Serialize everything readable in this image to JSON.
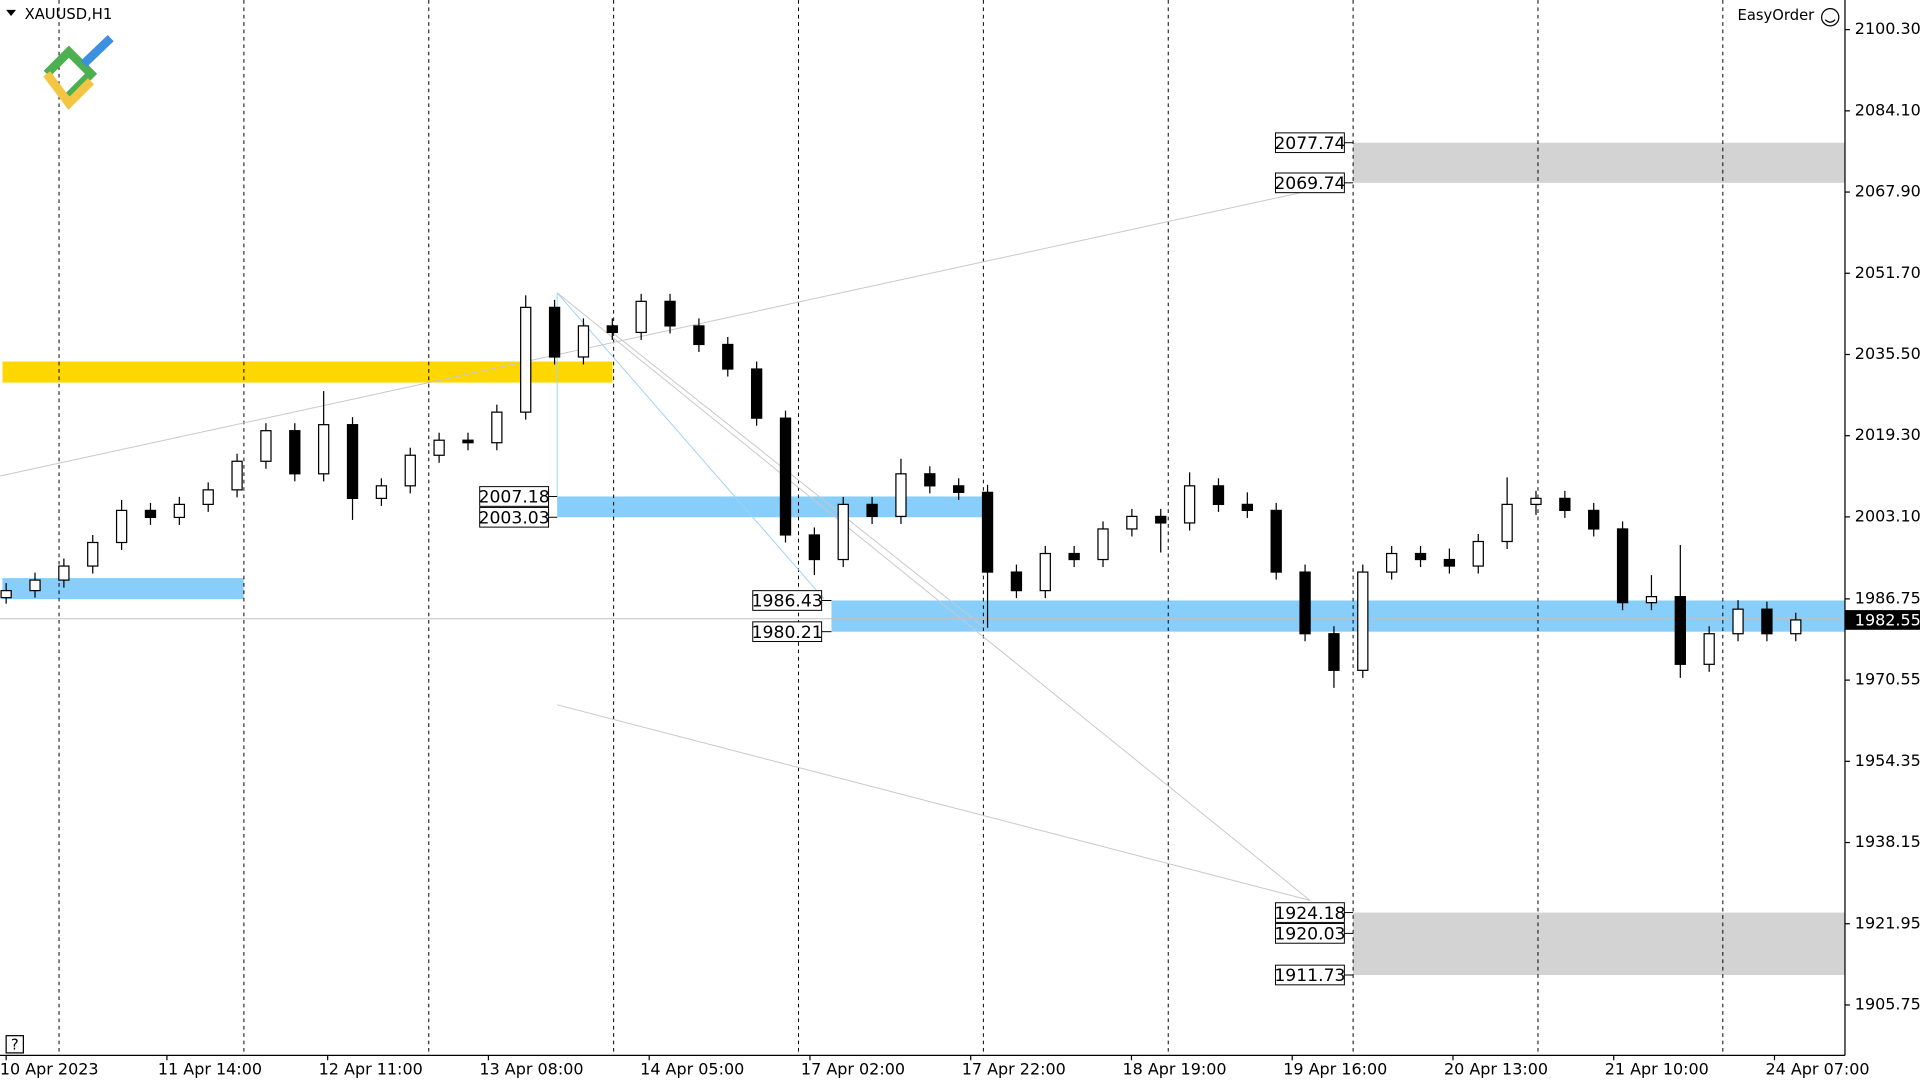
{
  "header": {
    "symbol": "XAUUSD,H1",
    "panel": "EasyOrder",
    "help": "?"
  },
  "chart_data": {
    "type": "candlestick",
    "candles": [
      [
        1987.0,
        1989.9,
        1985.8,
        1988.4
      ],
      [
        1988.4,
        1992.0,
        1987.0,
        1990.5
      ],
      [
        1990.5,
        1994.8,
        1989.0,
        1993.3
      ],
      [
        1993.3,
        1999.5,
        1991.8,
        1998.0
      ],
      [
        1998.0,
        2006.5,
        1996.5,
        2004.4
      ],
      [
        2004.4,
        2005.9,
        2001.5,
        2003.0
      ],
      [
        2003.0,
        2007.1,
        2001.5,
        2005.6
      ],
      [
        2005.6,
        2010.0,
        2004.1,
        2008.5
      ],
      [
        2008.5,
        2015.7,
        2007.0,
        2014.2
      ],
      [
        2014.2,
        2021.8,
        2012.7,
        2020.3
      ],
      [
        2020.3,
        2021.8,
        2010.2,
        2011.7
      ],
      [
        2011.7,
        2028.2,
        2010.2,
        2021.5
      ],
      [
        2021.5,
        2023.0,
        2002.5,
        2006.8
      ],
      [
        2006.8,
        2010.8,
        2005.3,
        2009.3
      ],
      [
        2009.3,
        2016.9,
        2007.8,
        2015.4
      ],
      [
        2015.4,
        2019.9,
        2013.9,
        2018.4
      ],
      [
        2018.4,
        2019.9,
        2016.4,
        2017.9
      ],
      [
        2017.9,
        2025.5,
        2016.4,
        2024.0
      ],
      [
        2024.0,
        2047.3,
        2022.5,
        2044.9
      ],
      [
        2044.9,
        2046.4,
        2033.5,
        2035.0
      ],
      [
        2035.0,
        2042.7,
        2033.5,
        2041.2
      ],
      [
        2041.2,
        2042.7,
        2038.4,
        2039.9
      ],
      [
        2039.9,
        2047.6,
        2038.4,
        2046.1
      ],
      [
        2046.1,
        2047.6,
        2039.7,
        2041.2
      ],
      [
        2041.2,
        2042.7,
        2036.0,
        2037.5
      ],
      [
        2037.5,
        2039.0,
        2031.1,
        2032.6
      ],
      [
        2032.6,
        2034.1,
        2021.3,
        2022.8
      ],
      [
        2022.8,
        2024.3,
        1998.0,
        1999.5
      ],
      [
        1999.5,
        2001.0,
        1991.5,
        1994.6
      ],
      [
        1994.6,
        2007.1,
        1993.1,
        2005.6
      ],
      [
        2005.6,
        2007.1,
        2001.7,
        2003.2
      ],
      [
        2003.2,
        2014.7,
        2001.7,
        2011.7
      ],
      [
        2011.7,
        2013.2,
        2007.8,
        2009.3
      ],
      [
        2009.3,
        2010.8,
        2006.5,
        2008.0
      ],
      [
        2008.0,
        2009.5,
        1981.0,
        1992.1
      ],
      [
        1992.1,
        1993.6,
        1986.9,
        1988.4
      ],
      [
        1988.4,
        1997.3,
        1986.9,
        1995.8
      ],
      [
        1995.8,
        1997.3,
        1993.1,
        1994.6
      ],
      [
        1994.6,
        2002.2,
        1993.1,
        2000.7
      ],
      [
        2000.7,
        2004.7,
        1999.2,
        2003.2
      ],
      [
        2003.2,
        2004.7,
        1996.0,
        2001.9
      ],
      [
        2001.9,
        2012.0,
        2000.4,
        2009.3
      ],
      [
        2009.3,
        2010.8,
        2004.1,
        2005.6
      ],
      [
        2005.6,
        2008.0,
        2002.9,
        2004.4
      ],
      [
        2004.4,
        2005.9,
        1990.6,
        1992.1
      ],
      [
        1992.1,
        1993.6,
        1978.3,
        1979.8
      ],
      [
        1979.8,
        1981.3,
        1969.0,
        1972.5
      ],
      [
        1972.5,
        1993.6,
        1971.0,
        1992.1
      ],
      [
        1992.1,
        1997.3,
        1990.6,
        1995.8
      ],
      [
        1995.8,
        1997.3,
        1993.1,
        1994.6
      ],
      [
        1994.6,
        1996.8,
        1991.8,
        1993.3
      ],
      [
        1993.3,
        1999.7,
        1991.8,
        1998.2
      ],
      [
        1998.2,
        2011.0,
        1996.7,
        2005.6
      ],
      [
        2005.6,
        2008.3,
        2003.5,
        2006.8
      ],
      [
        2006.8,
        2008.3,
        2002.9,
        2004.4
      ],
      [
        2004.4,
        2005.9,
        1999.2,
        2000.7
      ],
      [
        2000.7,
        2002.2,
        1984.5,
        1986.0
      ],
      [
        1986.0,
        1991.5,
        1984.5,
        1987.2
      ],
      [
        1987.2,
        1997.5,
        1971.0,
        1973.7
      ],
      [
        1973.7,
        1981.3,
        1972.2,
        1979.8
      ],
      [
        1979.8,
        1986.5,
        1978.3,
        1984.7
      ],
      [
        1984.7,
        1986.2,
        1978.3,
        1979.8
      ],
      [
        1979.8,
        1984.0,
        1978.3,
        1982.55
      ]
    ],
    "categories": [
      "10 Apr 2023",
      "11 Apr 14:00",
      "12 Apr 11:00",
      "13 Apr 08:00",
      "14 Apr 05:00",
      "17 Apr 02:00",
      "17 Apr 22:00",
      "18 Apr 19:00",
      "19 Apr 16:00",
      "20 Apr 13:00",
      "21 Apr 10:00",
      "24 Apr 07:00"
    ],
    "ylim": [
      1895.7,
      2106.2
    ],
    "yticks": [
      {
        "value": 2100.3,
        "label": "2100.30"
      },
      {
        "value": 2084.1,
        "label": "2084.10"
      },
      {
        "value": 2067.9,
        "label": "2067.90"
      },
      {
        "value": 2051.7,
        "label": "2051.70"
      },
      {
        "value": 2035.5,
        "label": "2035.50"
      },
      {
        "value": 2019.3,
        "label": "2019.30"
      },
      {
        "value": 2003.1,
        "label": "2003.10"
      },
      1986.75,
      1970.55,
      1954.35,
      1938.15,
      1921.95,
      1905.75
    ],
    "current_price": 1982.55,
    "zones": [
      {
        "color": "#d3d3d3",
        "levels": [
          2077.74,
          2069.74
        ]
      },
      {
        "color": "#d3d3d3",
        "levels": [
          1924.18,
          1920.03,
          1911.73
        ]
      },
      {
        "color": "#87cefa",
        "levels": [
          2007.18,
          2003.03
        ]
      },
      {
        "color": "#87cefa",
        "levels": [
          1986.43,
          1980.21
        ]
      },
      {
        "color": "#ffd700",
        "low": 2029.9,
        "high": 2034.1
      },
      {
        "color": "#87cefa",
        "low": 1986.7,
        "high": 1990.9
      }
    ]
  }
}
